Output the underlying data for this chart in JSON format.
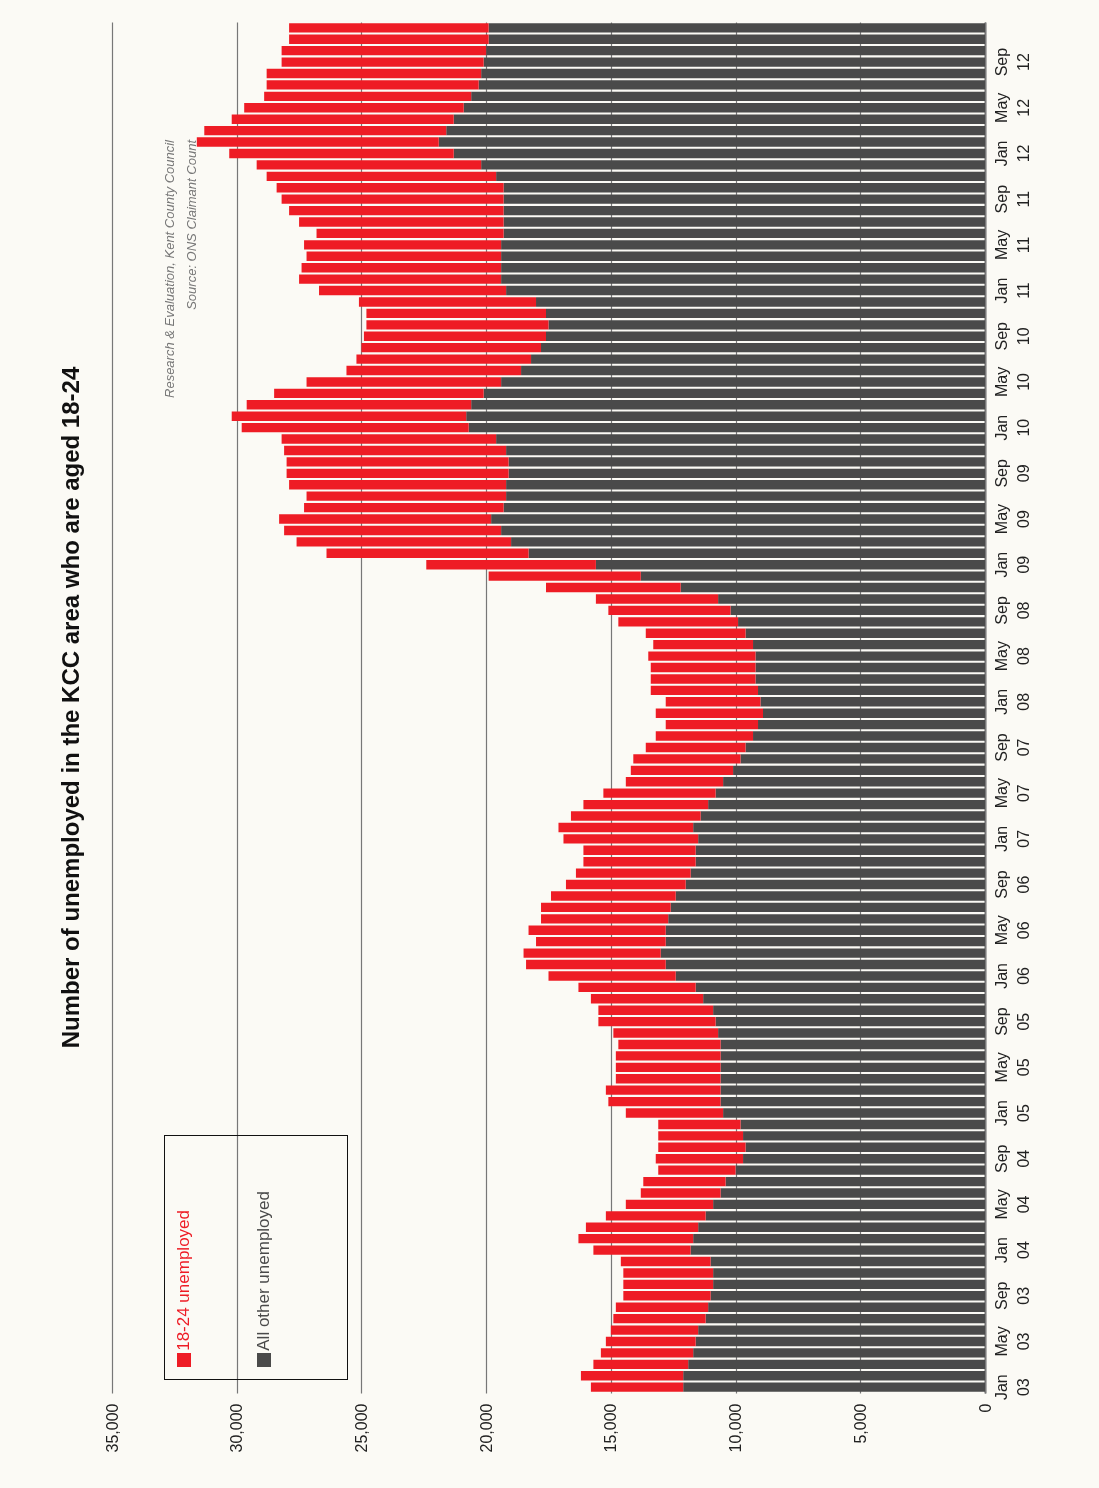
{
  "chart_data": {
    "type": "bar",
    "title": "Number of unemployed in the KCC area who are aged 18-24",
    "orientation": "horizontal",
    "categories": [
      null,
      null,
      null,
      "Sep 12",
      null,
      null,
      null,
      "May 12",
      null,
      null,
      null,
      "Jan 12",
      null,
      null,
      null,
      "Sep 11",
      null,
      null,
      null,
      "May 11",
      null,
      null,
      null,
      "Jan 11",
      null,
      null,
      null,
      "Sep 10",
      null,
      null,
      null,
      "May 10",
      null,
      null,
      null,
      "Jan 10",
      null,
      null,
      null,
      "Sep 09",
      null,
      null,
      null,
      "May 09",
      null,
      null,
      null,
      "Jan 09",
      null,
      null,
      null,
      "Sep 08",
      null,
      null,
      null,
      "May 08",
      null,
      null,
      null,
      "Jan 08",
      null,
      null,
      null,
      "Sep 07",
      null,
      null,
      null,
      "May 07",
      null,
      null,
      null,
      "Jan 07",
      null,
      null,
      null,
      "Sep 06",
      null,
      null,
      null,
      "May 06",
      null,
      null,
      null,
      "Jan 06",
      null,
      null,
      null,
      "Sep 05",
      null,
      null,
      null,
      "May 05",
      null,
      null,
      null,
      "Jan 05",
      null,
      null,
      null,
      "Sep 04",
      null,
      null,
      null,
      "May 04",
      null,
      null,
      null,
      "Jan 04",
      null,
      null,
      null,
      "Sep 03",
      null,
      null,
      null,
      "May 03",
      null,
      null,
      null,
      "Jan 03"
    ],
    "series": [
      {
        "name": "All other unemployed",
        "color": "#4a4a4a",
        "values": [
          19900,
          19900,
          20000,
          20100,
          20200,
          20300,
          20600,
          20900,
          21300,
          21600,
          21900,
          21300,
          20200,
          19600,
          19300,
          19300,
          19300,
          19300,
          19300,
          19400,
          19400,
          19400,
          19400,
          19200,
          18000,
          17600,
          17500,
          17600,
          17800,
          18200,
          18600,
          19400,
          20100,
          20600,
          20800,
          20700,
          19600,
          19200,
          19100,
          19100,
          19200,
          19200,
          19300,
          19800,
          19400,
          19000,
          18300,
          15600,
          13800,
          12200,
          10700,
          10200,
          9900,
          9600,
          9300,
          9200,
          9200,
          9200,
          9100,
          9000,
          8900,
          9100,
          9300,
          9600,
          9800,
          10100,
          10500,
          10800,
          11100,
          11400,
          11700,
          11500,
          11600,
          11600,
          11800,
          12000,
          12400,
          12600,
          12700,
          12800,
          12800,
          13000,
          12800,
          12400,
          11600,
          11300,
          10900,
          10800,
          10700,
          10600,
          10600,
          10600,
          10600,
          10600,
          10600,
          10500,
          9800,
          9700,
          9600,
          9700,
          10000,
          10400,
          10600,
          10900,
          11200,
          11500,
          11700,
          11800,
          11000,
          10900,
          10900,
          11000,
          11100,
          11200,
          11500,
          11600,
          11700,
          11900,
          12100,
          12100
        ]
      },
      {
        "name": "18-24 unemployed",
        "color": "#ee1c25",
        "values": [
          8000,
          8000,
          8200,
          8100,
          8600,
          8500,
          8300,
          8800,
          8900,
          9700,
          9700,
          9000,
          9000,
          9200,
          9100,
          8900,
          8600,
          8200,
          7500,
          7900,
          7800,
          8000,
          8100,
          7500,
          7100,
          7200,
          7300,
          7300,
          7200,
          7000,
          7000,
          7800,
          8400,
          9000,
          9400,
          9100,
          8600,
          8900,
          8900,
          8900,
          8700,
          8000,
          8000,
          8500,
          8700,
          8600,
          8100,
          6800,
          6100,
          5400,
          4900,
          4900,
          4800,
          4000,
          4000,
          4300,
          4200,
          4200,
          4300,
          3800,
          4300,
          3700,
          3900,
          4000,
          4300,
          4100,
          3900,
          4500,
          5000,
          5200,
          5400,
          5400,
          4500,
          4500,
          4600,
          4800,
          5000,
          5200,
          5100,
          5500,
          5200,
          5500,
          5600,
          5100,
          4700,
          4500,
          4600,
          4700,
          4200,
          4100,
          4200,
          4200,
          4200,
          4600,
          4500,
          3900,
          3300,
          3400,
          3500,
          3500,
          3100,
          3300,
          3200,
          3500,
          4000,
          4500,
          4600,
          3900,
          3600,
          3600,
          3600,
          3500,
          3700,
          3700,
          3500,
          3600,
          3700,
          3800,
          4100,
          3700
        ]
      }
    ],
    "stacked": true,
    "xlim": [
      35000,
      0
    ],
    "xticks": [
      {
        "value": 35000,
        "label": "35,000"
      },
      {
        "value": 30000,
        "label": "30,000"
      },
      {
        "value": 25000,
        "label": "25,000"
      },
      {
        "value": 20000,
        "label": "20,000"
      },
      {
        "value": 15000,
        "label": "15,000"
      },
      {
        "value": 10000,
        "label": "10,000"
      },
      {
        "value": 5000,
        "label": "5,000"
      },
      0
    ],
    "grid": "x",
    "legend": "bottom left",
    "annotations": [
      "Research & Evaluation, Kent County Council",
      "Source: ONS Claimant Count"
    ]
  }
}
